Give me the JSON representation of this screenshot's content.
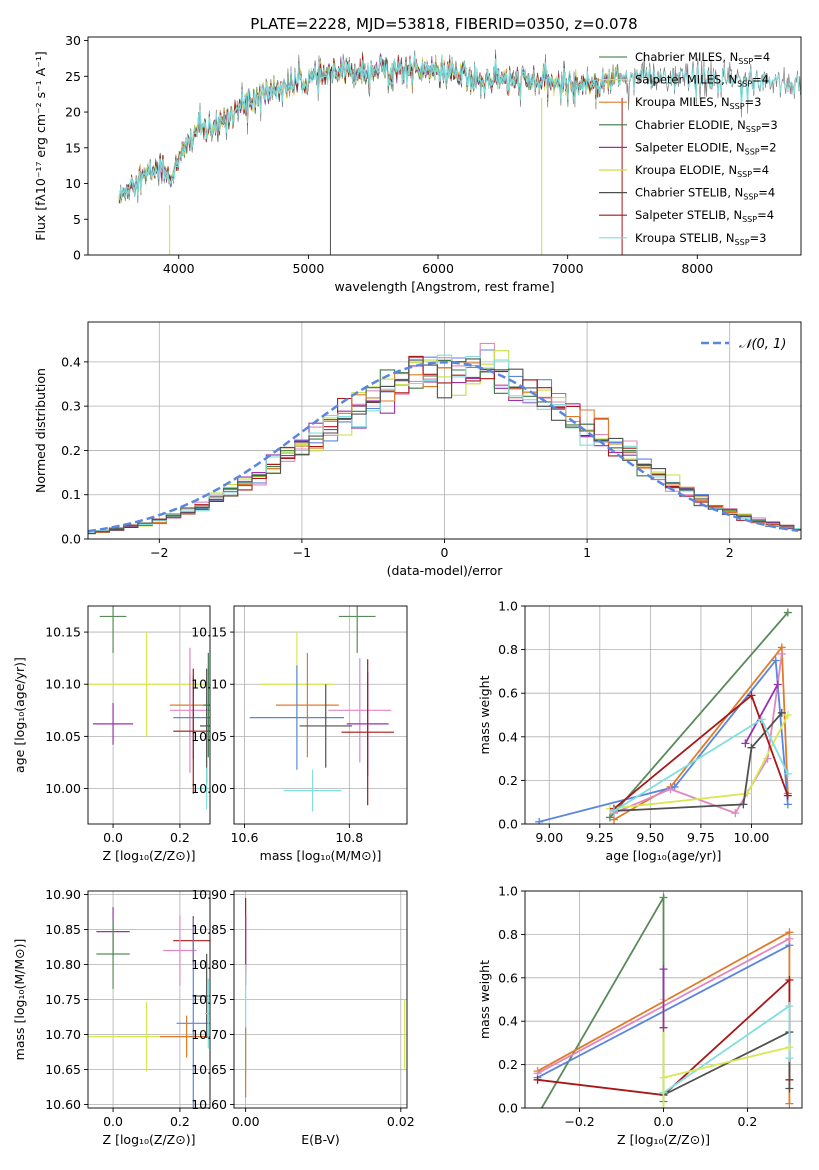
{
  "figure_title": "PLATE=2228, MJD=53818, FIBERID=0350, z=0.078",
  "colors": {
    "chabrier_miles": "#5a8a5a",
    "salpeter_miles": "#e0e060",
    "kroupa_miles": "#e07b2a",
    "chabrier_elodie": "#3c7a4a",
    "salpeter_elodie": "#9a30b0",
    "kroupa_elodie": "#c8e040",
    "chabrier_stelib": "#505050",
    "salpeter_stelib": "#a81818",
    "kroupa_stelib": "#80dede",
    "blue": "#5b86e0",
    "pink": "#e088c0",
    "green": "#5a8a5a",
    "yellow": "#d8e850",
    "orange": "#e07b2a",
    "purple": "#9a30b0",
    "gray": "#505050",
    "red": "#a81818",
    "cyan": "#80dede"
  },
  "chart_data": [
    {
      "id": "spectrum",
      "type": "line",
      "xlabel": "wavelength [Angstrom, rest frame]",
      "ylabel": "Flux [fλ10⁻¹⁷ erg cm⁻² s⁻¹ A⁻¹]",
      "xlim": [
        3300,
        8800
      ],
      "ylim": [
        0,
        30.5
      ],
      "xticks": [
        4000,
        5000,
        6000,
        7000,
        8000
      ],
      "yticks": [
        0,
        5,
        10,
        15,
        20,
        25,
        30
      ],
      "legend_position": "top-right",
      "legend": [
        {
          "label": "Chabrier MILES, N",
          "sub": "SSP",
          "suffix": "=4",
          "color": "#5a8a5a"
        },
        {
          "label": "Salpeter MILES, N",
          "sub": "SSP",
          "suffix": "=4",
          "color": "#d8d860"
        },
        {
          "label": "Kroupa MILES, N",
          "sub": "SSP",
          "suffix": "=3",
          "color": "#e07b2a"
        },
        {
          "label": "Chabrier ELODIE, N",
          "sub": "SSP",
          "suffix": "=3",
          "color": "#3c7a4a"
        },
        {
          "label": "Salpeter ELODIE, N",
          "sub": "SSP",
          "suffix": "=2",
          "color": "#9a30b0"
        },
        {
          "label": "Kroupa ELODIE, N",
          "sub": "SSP",
          "suffix": "=4",
          "color": "#c8e040"
        },
        {
          "label": "Chabrier STELIB, N",
          "sub": "SSP",
          "suffix": "=4",
          "color": "#505050"
        },
        {
          "label": "Salpeter STELIB, N",
          "sub": "SSP",
          "suffix": "=4",
          "color": "#a81818"
        },
        {
          "label": "Kroupa STELIB, N",
          "sub": "SSP",
          "suffix": "=3",
          "color": "#80dede"
        }
      ],
      "continuum": [
        [
          3550,
          8
        ],
        [
          3650,
          10.5
        ],
        [
          3750,
          11
        ],
        [
          3850,
          12.5
        ],
        [
          3950,
          11
        ],
        [
          4050,
          15
        ],
        [
          4150,
          18
        ],
        [
          4250,
          17
        ],
        [
          4350,
          19
        ],
        [
          4500,
          21
        ],
        [
          4700,
          23
        ],
        [
          4900,
          24
        ],
        [
          5100,
          25
        ],
        [
          5300,
          25.5
        ],
        [
          5500,
          26
        ],
        [
          5800,
          26
        ],
        [
          6100,
          25.5
        ],
        [
          6300,
          24.5
        ],
        [
          6600,
          24.5
        ],
        [
          6900,
          24
        ],
        [
          7200,
          24
        ],
        [
          7500,
          25
        ],
        [
          8000,
          24.5
        ],
        [
          8500,
          24.5
        ],
        [
          8800,
          24
        ]
      ],
      "obs_range": [
        3540,
        8800
      ],
      "model_range": [
        3540,
        7400
      ],
      "drops": [
        {
          "x": 3930,
          "color": "#c8e040",
          "y0": 7,
          "y1": 0
        },
        {
          "x": 5170,
          "color": "#505050",
          "y0": 26,
          "y1": 0
        },
        {
          "x": 6800,
          "color": "#c8e040",
          "y0": 22,
          "y1": 0
        },
        {
          "x": 7420,
          "color": "#a81818",
          "y0": 22,
          "y1": 0
        }
      ]
    },
    {
      "id": "residuals",
      "type": "histogram",
      "xlabel": "(data-model)/error",
      "ylabel": "Normed distribution",
      "xlim": [
        -2.5,
        2.5
      ],
      "ylim": [
        0,
        0.49
      ],
      "xticks": [
        -2,
        -1,
        0,
        1,
        2
      ],
      "yticks": [
        0,
        0.1,
        0.2,
        0.3,
        0.4
      ],
      "legend_position": "top-right",
      "legend_label": "𝒩(0, 1)",
      "bin_width": 0.1,
      "series_colors": [
        "#5b86e0",
        "#e088c0",
        "#c8e040",
        "#9a30b0",
        "#3c7a4a",
        "#a81818",
        "#e07b2a",
        "#80dede",
        "#505050"
      ],
      "normal_curve": {
        "mean": 0,
        "sigma": 1,
        "color": "#5b86e0"
      }
    },
    {
      "id": "age-vs-Z",
      "type": "errorbar",
      "xlabel": "Z [log₁₀(Z/Z⊙)]",
      "ylabel": "age  [log₁₀(age/yr)]",
      "xlim": [
        -0.075,
        0.29
      ],
      "ylim": [
        9.966,
        10.175
      ],
      "xticks": [
        0.0,
        0.2
      ],
      "yticks": [
        10.0,
        10.05,
        10.1,
        10.15
      ],
      "points": [
        {
          "x": 0.0,
          "y": 10.165,
          "xerr": 0.04,
          "yerr": 0.035,
          "color": "#5a8a5a"
        },
        {
          "x": 0.0,
          "y": 10.062,
          "xerr": 0.06,
          "yerr": 0.02,
          "color": "#9a30b0"
        },
        {
          "x": 0.1,
          "y": 10.1,
          "xerr": 0.2,
          "yerr": 0.05,
          "color": "#d8e850"
        },
        {
          "x": 0.23,
          "y": 10.08,
          "xerr": 0.06,
          "yerr": 0.03,
          "color": "#e07b2a"
        },
        {
          "x": 0.23,
          "y": 10.075,
          "xerr": 0.06,
          "yerr": 0.06,
          "color": "#e088c0"
        },
        {
          "x": 0.24,
          "y": 10.068,
          "xerr": 0.06,
          "yerr": 0.04,
          "color": "#5b86e0"
        },
        {
          "x": 0.24,
          "y": 10.055,
          "xerr": 0.06,
          "yerr": 0.06,
          "color": "#a81818"
        },
        {
          "x": 0.28,
          "y": 10.06,
          "xerr": 0.02,
          "yerr": 0.055,
          "color": "#505050"
        },
        {
          "x": 0.28,
          "y": 10.0,
          "xerr": 0.03,
          "yerr": 0.02,
          "color": "#80dede"
        },
        {
          "x": 0.285,
          "y": 10.08,
          "xerr": 0.015,
          "yerr": 0.05,
          "color": "#3c7a4a"
        }
      ]
    },
    {
      "id": "age-vs-mass",
      "type": "errorbar",
      "xlabel": "mass [log₁₀(M/M⊙)]",
      "ylabel": "",
      "xlim": [
        10.58,
        10.91
      ],
      "ylim": [
        9.966,
        10.175
      ],
      "xticks": [
        10.6,
        10.8
      ],
      "yticks": [
        10.0,
        10.05,
        10.1,
        10.15
      ],
      "points": [
        {
          "x": 10.815,
          "y": 10.165,
          "xerr": 0.035,
          "yerr": 0.035,
          "color": "#5a8a5a"
        },
        {
          "x": 10.7,
          "y": 10.1,
          "xerr": 0.07,
          "yerr": 0.05,
          "color": "#d8e850"
        },
        {
          "x": 10.72,
          "y": 10.08,
          "xerr": 0.06,
          "yerr": 0.05,
          "color": "#e07b2a"
        },
        {
          "x": 10.82,
          "y": 10.075,
          "xerr": 0.06,
          "yerr": 0.05,
          "color": "#e088c0"
        },
        {
          "x": 10.7,
          "y": 10.068,
          "xerr": 0.09,
          "yerr": 0.05,
          "color": "#5b86e0"
        },
        {
          "x": 10.835,
          "y": 10.062,
          "xerr": 0.04,
          "yerr": 0.05,
          "color": "#9a30b0"
        },
        {
          "x": 10.835,
          "y": 10.054,
          "xerr": 0.05,
          "yerr": 0.07,
          "color": "#a81818"
        },
        {
          "x": 10.755,
          "y": 10.06,
          "xerr": 0.05,
          "yerr": 0.04,
          "color": "#505050"
        },
        {
          "x": 10.73,
          "y": 9.998,
          "xerr": 0.055,
          "yerr": 0.02,
          "color": "#80dede"
        }
      ]
    },
    {
      "id": "massweight-vs-age",
      "type": "line",
      "xlabel": "age  [log₁₀(age/yr)]",
      "ylabel": "mass weight",
      "xlim": [
        8.88,
        10.25
      ],
      "ylim": [
        0,
        1.0
      ],
      "xticks": [
        9.0,
        9.25,
        9.5,
        9.75,
        10.0
      ],
      "xticklabels": [
        "9.00",
        "9.25",
        "9.50",
        "9.75",
        "10.00"
      ],
      "yticks": [
        0,
        0.2,
        0.4,
        0.6,
        0.8,
        1.0
      ],
      "series": [
        {
          "color": "#5a8a5a",
          "points": [
            [
              9.3,
              0.03
            ],
            [
              10.18,
              0.97
            ]
          ]
        },
        {
          "color": "#e07b2a",
          "points": [
            [
              9.32,
              0.02
            ],
            [
              9.6,
              0.17
            ],
            [
              10.15,
              0.81
            ],
            [
              10.18,
              0.14
            ]
          ]
        },
        {
          "color": "#5b86e0",
          "points": [
            [
              8.95,
              0.01
            ],
            [
              9.62,
              0.17
            ],
            [
              10.12,
              0.75
            ],
            [
              10.18,
              0.09
            ]
          ]
        },
        {
          "color": "#e088c0",
          "points": [
            [
              9.32,
              0.05
            ],
            [
              9.6,
              0.16
            ],
            [
              9.92,
              0.05
            ],
            [
              10.08,
              0.3
            ],
            [
              10.15,
              0.78
            ]
          ]
        },
        {
          "color": "#d8e850",
          "points": [
            [
              9.3,
              0.07
            ],
            [
              9.98,
              0.14
            ],
            [
              10.18,
              0.5
            ]
          ]
        },
        {
          "color": "#9a30b0",
          "points": [
            [
              9.97,
              0.37
            ],
            [
              10.13,
              0.64
            ]
          ]
        },
        {
          "color": "#a81818",
          "points": [
            [
              9.32,
              0.07
            ],
            [
              10.0,
              0.59
            ],
            [
              10.18,
              0.13
            ]
          ]
        },
        {
          "color": "#505050",
          "points": [
            [
              9.32,
              0.06
            ],
            [
              9.96,
              0.09
            ],
            [
              10.0,
              0.35
            ],
            [
              10.15,
              0.51
            ]
          ]
        },
        {
          "color": "#80dede",
          "points": [
            [
              9.32,
              0.06
            ],
            [
              10.05,
              0.48
            ],
            [
              10.18,
              0.23
            ]
          ]
        }
      ]
    },
    {
      "id": "mass-vs-Z",
      "type": "errorbar",
      "xlabel": "Z [log₁₀(Z/Z⊙)]",
      "ylabel": "mass [log₁₀(M/M⊙)]",
      "xlim": [
        -0.075,
        0.29
      ],
      "ylim": [
        10.595,
        10.905
      ],
      "xticks": [
        0.0,
        0.2
      ],
      "yticks": [
        10.6,
        10.65,
        10.7,
        10.75,
        10.8,
        10.85,
        10.9
      ],
      "points": [
        {
          "x": 0.0,
          "y": 10.847,
          "xerr": 0.05,
          "yerr": 0.035,
          "color": "#9a30b0"
        },
        {
          "x": 0.0,
          "y": 10.815,
          "xerr": 0.05,
          "yerr": 0.05,
          "color": "#5a8a5a"
        },
        {
          "x": 0.24,
          "y": 10.834,
          "xerr": 0.06,
          "yerr": 0.035,
          "color": "#a81818"
        },
        {
          "x": 0.2,
          "y": 10.82,
          "xerr": 0.05,
          "yerr": 0.05,
          "color": "#e088c0"
        },
        {
          "x": 0.1,
          "y": 10.697,
          "xerr": 0.2,
          "yerr": 0.05,
          "color": "#d8e850"
        },
        {
          "x": 0.22,
          "y": 10.697,
          "xerr": 0.08,
          "yerr": 0.03,
          "color": "#e07b2a"
        },
        {
          "x": 0.24,
          "y": 10.716,
          "xerr": 0.05,
          "yerr": 0.15,
          "color": "#5b86e0"
        },
        {
          "x": 0.28,
          "y": 10.755,
          "xerr": 0.04,
          "yerr": 0.06,
          "color": "#505050"
        },
        {
          "x": 0.285,
          "y": 10.73,
          "xerr": 0.01,
          "yerr": 0.05,
          "color": "#80dede"
        }
      ]
    },
    {
      "id": "mass-vs-EBV",
      "type": "errorbar",
      "xlabel": "E(B-V)",
      "ylabel": "",
      "xlim": [
        -0.0015,
        0.0208
      ],
      "ylim": [
        10.595,
        10.905
      ],
      "xticks": [
        0.0,
        0.02
      ],
      "xticklabels": [
        "0.00",
        "0.02"
      ],
      "yticks": [
        10.6,
        10.65,
        10.7,
        10.75,
        10.8,
        10.85,
        10.9
      ],
      "points": [
        {
          "x": 0.0,
          "y": 10.84,
          "xerr": 0,
          "yerr": 0.055,
          "color": "#a81818"
        },
        {
          "x": 0.0,
          "y": 10.82,
          "xerr": 0,
          "yerr": 0.05,
          "color": "#9a30b0"
        },
        {
          "x": 0.0,
          "y": 10.72,
          "xerr": 0,
          "yerr": 0.08,
          "color": "#80dede"
        },
        {
          "x": 0.0,
          "y": 10.66,
          "xerr": 0,
          "yerr": 0.05,
          "color": "#e07b2a"
        },
        {
          "x": 0.0205,
          "y": 10.7,
          "xerr": 0,
          "yerr": 0.05,
          "color": "#d8e850"
        }
      ]
    },
    {
      "id": "massweight-vs-Z",
      "type": "line",
      "xlabel": "Z [log₁₀(Z/Z⊙)]",
      "ylabel": "mass weight",
      "xlim": [
        -0.33,
        0.33
      ],
      "ylim": [
        0,
        1.0
      ],
      "xticks": [
        -0.2,
        0.0,
        0.2
      ],
      "xticklabels": [
        "−0.2",
        "0.0",
        "0.2"
      ],
      "yticks": [
        0,
        0.2,
        0.4,
        0.6,
        0.8,
        1.0
      ],
      "series": [
        {
          "color": "#5a8a5a",
          "points": [
            [
              -0.35,
              -0.2
            ],
            [
              0.0,
              0.97
            ],
            [
              0.0,
              0.03
            ]
          ]
        },
        {
          "color": "#e07b2a",
          "points": [
            [
              -0.3,
              0.17
            ],
            [
              0.3,
              0.81
            ],
            [
              0.3,
              0.02
            ]
          ]
        },
        {
          "color": "#5b86e0",
          "points": [
            [
              -0.3,
              0.14
            ],
            [
              0.3,
              0.75
            ]
          ]
        },
        {
          "color": "#e088c0",
          "points": [
            [
              -0.3,
              0.16
            ],
            [
              0.3,
              0.78
            ]
          ]
        },
        {
          "color": "#a81818",
          "points": [
            [
              -0.3,
              0.13
            ],
            [
              0.0,
              0.06
            ],
            [
              0.3,
              0.59
            ],
            [
              0.3,
              0.13
            ]
          ]
        },
        {
          "color": "#505050",
          "points": [
            [
              0.0,
              0.06
            ],
            [
              0.3,
              0.35
            ],
            [
              0.3,
              0.09
            ]
          ]
        },
        {
          "color": "#80dede",
          "points": [
            [
              0.0,
              0.07
            ],
            [
              0.3,
              0.47
            ],
            [
              0.3,
              0.23
            ]
          ]
        },
        {
          "color": "#d8e850",
          "points": [
            [
              0.0,
              0.0
            ],
            [
              0.0,
              0.5
            ],
            [
              0.0,
              0.14
            ],
            [
              0.3,
              0.28
            ]
          ]
        },
        {
          "color": "#9a30b0",
          "points": [
            [
              0.0,
              0.64
            ],
            [
              0.0,
              0.37
            ]
          ]
        }
      ]
    }
  ]
}
